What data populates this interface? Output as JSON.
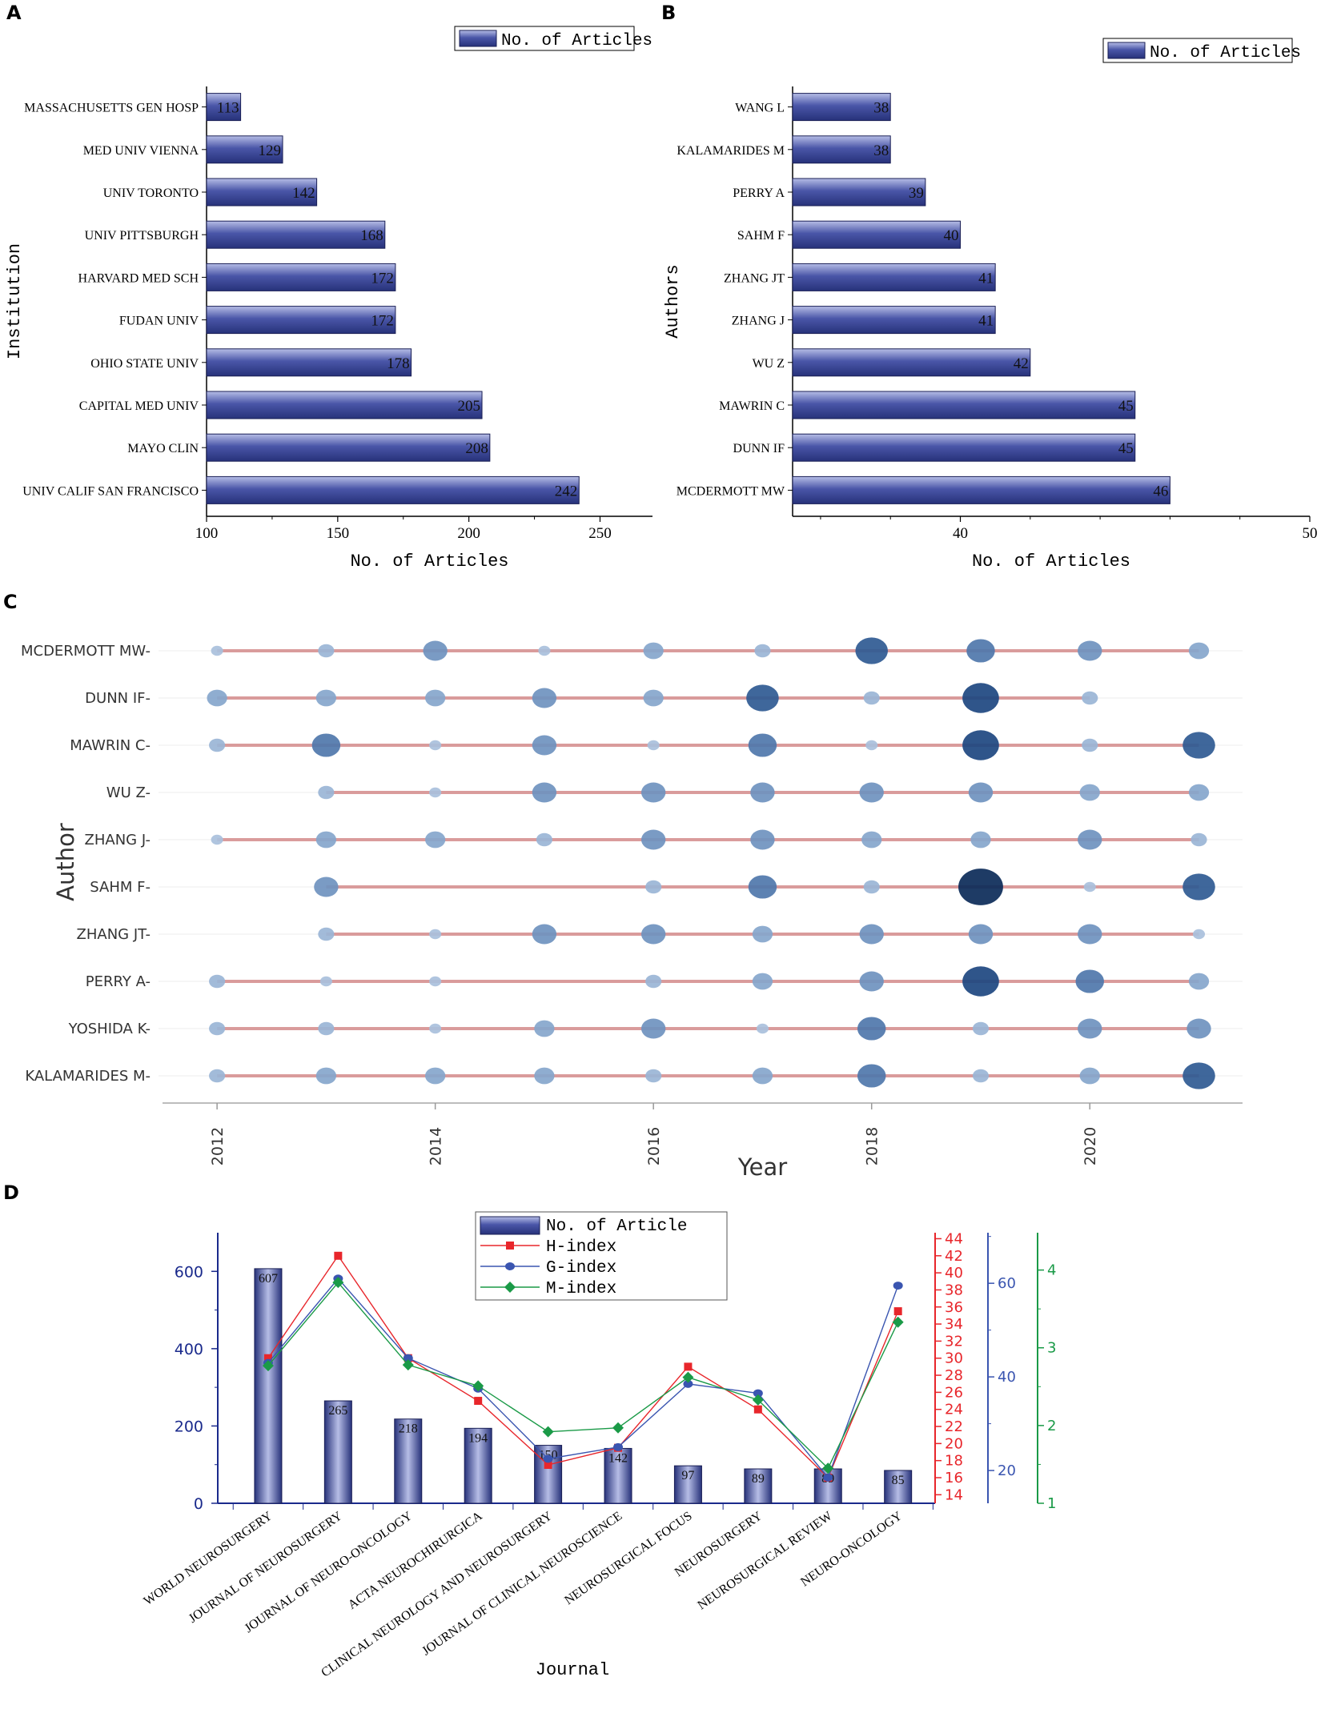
{
  "panels": {
    "a": "A",
    "b": "B",
    "c": "C",
    "d": "D"
  },
  "chart_data": [
    {
      "id": "A",
      "type": "bar",
      "orientation": "horizontal",
      "categories": [
        "UNIV CALIF SAN FRANCISCO",
        "MAYO CLIN",
        "CAPITAL MED UNIV",
        "OHIO STATE UNIV",
        "FUDAN UNIV",
        "HARVARD MED SCH",
        "UNIV PITTSBURGH",
        "UNIV TORONTO",
        "MED UNIV VIENNA",
        "MASSACHUSETTS GEN HOSP"
      ],
      "values": [
        242,
        208,
        205,
        178,
        172,
        172,
        168,
        142,
        129,
        113
      ],
      "xlabel": "No. of Articles",
      "ylabel": "Institution",
      "xlim": [
        100,
        270
      ],
      "xticks": [
        100,
        150,
        200,
        250
      ],
      "legend": "No. of Articles",
      "color": "#4a56a8"
    },
    {
      "id": "B",
      "type": "bar",
      "orientation": "horizontal",
      "categories": [
        "MCDERMOTT MW",
        "DUNN IF",
        "MAWRIN C",
        "WU Z",
        "ZHANG J",
        "ZHANG JT",
        "SAHM F",
        "PERRY A",
        "KALAMARIDES M",
        "WANG L"
      ],
      "values": [
        46,
        45,
        45,
        42,
        41,
        41,
        40,
        39,
        38,
        38
      ],
      "xlabel": "No. of Articles",
      "ylabel": "Authors",
      "xlim": [
        35.2,
        50
      ],
      "xticks": [
        40,
        50
      ],
      "legend": "No. of Articles",
      "color": "#4a56a8"
    },
    {
      "id": "C",
      "type": "scatter",
      "subtype": "bubble-timeline",
      "xlabel": "Year",
      "ylabel": "Author",
      "xlim": [
        2011.5,
        2021.4
      ],
      "xticks": [
        2012,
        2014,
        2016,
        2018,
        2020
      ],
      "authors": [
        "MCDERMOTT MW",
        "DUNN IF",
        "MAWRIN C",
        "WU Z",
        "ZHANG J",
        "SAHM F",
        "ZHANG JT",
        "PERRY A",
        "YOSHIDA K",
        "KALAMARIDES M"
      ],
      "series": [
        {
          "name": "MCDERMOTT MW",
          "start": 2012,
          "end": 2021,
          "points": [
            [
              2012,
              1
            ],
            [
              2013,
              2
            ],
            [
              2014,
              4
            ],
            [
              2015,
              1
            ],
            [
              2016,
              3
            ],
            [
              2017,
              2
            ],
            [
              2018,
              6
            ],
            [
              2019,
              5
            ],
            [
              2020,
              4
            ],
            [
              2021,
              3
            ]
          ]
        },
        {
          "name": "DUNN IF",
          "start": 2012,
          "end": 2020,
          "points": [
            [
              2012,
              3
            ],
            [
              2013,
              3
            ],
            [
              2014,
              3
            ],
            [
              2015,
              4
            ],
            [
              2016,
              3
            ],
            [
              2017,
              6
            ],
            [
              2018,
              2
            ],
            [
              2019,
              7
            ],
            [
              2020,
              2
            ]
          ]
        },
        {
          "name": "MAWRIN C",
          "start": 2012,
          "end": 2021,
          "points": [
            [
              2012,
              2
            ],
            [
              2013,
              5
            ],
            [
              2014,
              1
            ],
            [
              2015,
              4
            ],
            [
              2016,
              1
            ],
            [
              2017,
              5
            ],
            [
              2018,
              1
            ],
            [
              2019,
              7
            ],
            [
              2020,
              2
            ],
            [
              2021,
              6
            ]
          ]
        },
        {
          "name": "WU Z",
          "start": 2013,
          "end": 2021,
          "points": [
            [
              2013,
              2
            ],
            [
              2014,
              1
            ],
            [
              2015,
              4
            ],
            [
              2016,
              4
            ],
            [
              2017,
              4
            ],
            [
              2018,
              4
            ],
            [
              2019,
              4
            ],
            [
              2020,
              3
            ],
            [
              2021,
              3
            ]
          ]
        },
        {
          "name": "ZHANG J",
          "start": 2012,
          "end": 2021,
          "points": [
            [
              2012,
              1
            ],
            [
              2013,
              3
            ],
            [
              2014,
              3
            ],
            [
              2015,
              2
            ],
            [
              2016,
              4
            ],
            [
              2017,
              4
            ],
            [
              2018,
              3
            ],
            [
              2019,
              3
            ],
            [
              2020,
              4
            ],
            [
              2021,
              2
            ]
          ]
        },
        {
          "name": "SAHM F",
          "start": 2013,
          "end": 2021,
          "points": [
            [
              2013,
              4
            ],
            [
              2016,
              2
            ],
            [
              2017,
              5
            ],
            [
              2018,
              2
            ],
            [
              2019,
              9
            ],
            [
              2020,
              1
            ],
            [
              2021,
              6
            ]
          ]
        },
        {
          "name": "ZHANG JT",
          "start": 2013,
          "end": 2021,
          "points": [
            [
              2013,
              2
            ],
            [
              2014,
              1
            ],
            [
              2015,
              4
            ],
            [
              2016,
              4
            ],
            [
              2017,
              3
            ],
            [
              2018,
              4
            ],
            [
              2019,
              4
            ],
            [
              2020,
              4
            ],
            [
              2021,
              1
            ]
          ]
        },
        {
          "name": "PERRY A",
          "start": 2012,
          "end": 2021,
          "points": [
            [
              2012,
              2
            ],
            [
              2013,
              1
            ],
            [
              2014,
              1
            ],
            [
              2016,
              2
            ],
            [
              2017,
              3
            ],
            [
              2018,
              4
            ],
            [
              2019,
              7
            ],
            [
              2020,
              5
            ],
            [
              2021,
              3
            ]
          ]
        },
        {
          "name": "YOSHIDA K",
          "start": 2012,
          "end": 2021,
          "points": [
            [
              2012,
              2
            ],
            [
              2013,
              2
            ],
            [
              2014,
              1
            ],
            [
              2015,
              3
            ],
            [
              2016,
              4
            ],
            [
              2017,
              1
            ],
            [
              2018,
              5
            ],
            [
              2019,
              2
            ],
            [
              2020,
              4
            ],
            [
              2021,
              4
            ]
          ]
        },
        {
          "name": "KALAMARIDES M",
          "start": 2012,
          "end": 2021,
          "points": [
            [
              2012,
              2
            ],
            [
              2013,
              3
            ],
            [
              2014,
              3
            ],
            [
              2015,
              3
            ],
            [
              2016,
              2
            ],
            [
              2017,
              3
            ],
            [
              2018,
              5
            ],
            [
              2019,
              2
            ],
            [
              2020,
              3
            ],
            [
              2021,
              6
            ]
          ]
        }
      ]
    },
    {
      "id": "D",
      "type": "bar",
      "subtype": "bar-line-combo",
      "categories": [
        "WORLD NEUROSURGERY",
        "JOURNAL OF NEUROSURGERY",
        "JOURNAL OF NEURO-ONCOLOGY",
        "ACTA NEUROCHIRURGICA",
        "CLINICAL NEUROLOGY AND NEUROSURGERY",
        "JOURNAL OF CLINICAL NEUROSCIENCE",
        "NEUROSURGICAL FOCUS",
        "NEUROSURGERY",
        "NEUROSURGICAL REVIEW",
        "NEURO-ONCOLOGY"
      ],
      "bar_labels": [
        "607",
        "265",
        "218",
        "194",
        "150",
        "142",
        "97",
        "89",
        "89",
        "85"
      ],
      "series": [
        {
          "name": "No. of Article",
          "kind": "bar",
          "axis": "left",
          "values": [
            607,
            265,
            218,
            194,
            150,
            142,
            97,
            89,
            89,
            85
          ],
          "color": "#4a56a8"
        },
        {
          "name": "H-index",
          "kind": "line",
          "axis": "red",
          "values": [
            30,
            42,
            30,
            25,
            17.5,
            19.5,
            29,
            24,
            16,
            35.5
          ],
          "color": "#e8262b"
        },
        {
          "name": "G-index",
          "kind": "line",
          "axis": "blue",
          "values": [
            43,
            61,
            44,
            37.5,
            22.5,
            25,
            38.5,
            36.5,
            18.5,
            59.5
          ],
          "color": "#3a55b0"
        },
        {
          "name": "M-index",
          "kind": "line",
          "axis": "green",
          "values": [
            2.77,
            3.84,
            2.78,
            2.51,
            1.92,
            1.97,
            2.62,
            2.33,
            1.45,
            3.33
          ],
          "color": "#1a9a47"
        }
      ],
      "axes": {
        "left": {
          "range": [
            0,
            700
          ],
          "ticks": [
            0,
            200,
            400,
            600
          ]
        },
        "red": {
          "range": [
            13,
            44.7
          ],
          "ticks": [
            14,
            16,
            18,
            20,
            22,
            24,
            26,
            28,
            30,
            32,
            34,
            36,
            38,
            40,
            42,
            44
          ]
        },
        "blue": {
          "range": [
            13,
            70.8
          ],
          "ticks": [
            20,
            40,
            60
          ]
        },
        "green": {
          "range": [
            1,
            4.48
          ],
          "ticks": [
            1,
            2,
            3,
            4
          ]
        }
      },
      "xlabel": "Journal",
      "legend": [
        "No. of Article",
        "H-index",
        "G-index",
        "M-index"
      ]
    }
  ]
}
